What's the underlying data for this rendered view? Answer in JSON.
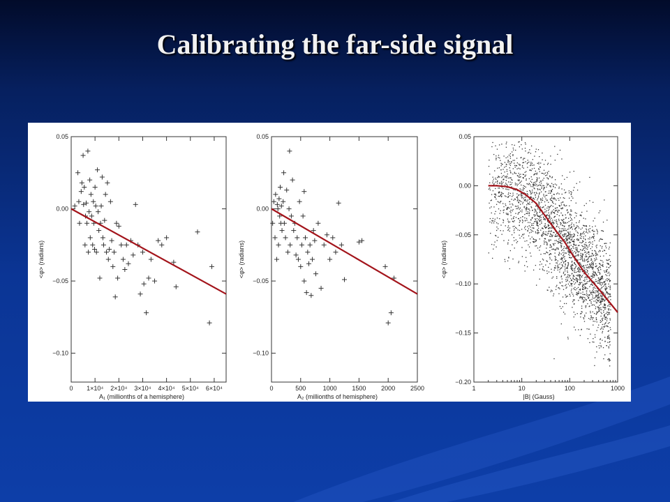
{
  "slide": {
    "title": "Calibrating the far-side signal"
  },
  "chart_data": [
    {
      "type": "scatter",
      "xlabel": "A₁ (millionths of a hemisphere)",
      "ylabel": "<φ> (radians)",
      "xlim": [
        0,
        65000
      ],
      "ylim": [
        -0.12,
        0.05
      ],
      "xticks": [
        0,
        10000,
        20000,
        30000,
        40000,
        50000,
        60000
      ],
      "xtick_labels": [
        "0",
        "1×10⁴",
        "2×10⁴",
        "3×10⁴",
        "4×10⁴",
        "5×10⁴",
        "6×10⁴"
      ],
      "yticks": [
        -0.1,
        -0.05,
        0.0,
        0.05
      ],
      "ytick_labels": [
        "−0.10",
        "−0.05",
        "0.00",
        "0.05"
      ],
      "marker": "plus",
      "points": [
        [
          1500,
          0.002
        ],
        [
          2800,
          0.025
        ],
        [
          3200,
          0.005
        ],
        [
          3500,
          -0.01
        ],
        [
          4200,
          0.012
        ],
        [
          4500,
          0.018
        ],
        [
          5000,
          0.037
        ],
        [
          5200,
          0.003
        ],
        [
          5500,
          0.015
        ],
        [
          5800,
          -0.025
        ],
        [
          6000,
          -0.005
        ],
        [
          6300,
          0.004
        ],
        [
          6600,
          -0.01
        ],
        [
          7000,
          0.04
        ],
        [
          7200,
          -0.03
        ],
        [
          7500,
          -0.002
        ],
        [
          7800,
          0.02
        ],
        [
          8000,
          -0.02
        ],
        [
          8300,
          0.01
        ],
        [
          8600,
          -0.005
        ],
        [
          9000,
          -0.025
        ],
        [
          9300,
          0.005
        ],
        [
          9500,
          -0.01
        ],
        [
          9800,
          -0.028
        ],
        [
          10000,
          0.015
        ],
        [
          10300,
          0.002
        ],
        [
          10600,
          -0.03
        ],
        [
          11000,
          0.027
        ],
        [
          11300,
          -0.002
        ],
        [
          11600,
          -0.015
        ],
        [
          12000,
          -0.048
        ],
        [
          12300,
          -0.01
        ],
        [
          12600,
          0.002
        ],
        [
          13000,
          0.022
        ],
        [
          13300,
          -0.02
        ],
        [
          13600,
          -0.025
        ],
        [
          14000,
          -0.008
        ],
        [
          14400,
          0.01
        ],
        [
          14800,
          -0.03
        ],
        [
          15200,
          0.018
        ],
        [
          15600,
          -0.035
        ],
        [
          16000,
          -0.028
        ],
        [
          16500,
          0.005
        ],
        [
          17000,
          -0.022
        ],
        [
          17500,
          -0.04
        ],
        [
          18000,
          -0.03
        ],
        [
          18500,
          -0.061
        ],
        [
          19000,
          -0.01
        ],
        [
          19500,
          -0.048
        ],
        [
          20000,
          -0.012
        ],
        [
          21000,
          -0.025
        ],
        [
          21800,
          -0.035
        ],
        [
          22500,
          -0.042
        ],
        [
          23200,
          -0.025
        ],
        [
          24000,
          -0.038
        ],
        [
          25000,
          -0.022
        ],
        [
          26000,
          -0.032
        ],
        [
          27000,
          0.003
        ],
        [
          28000,
          -0.025
        ],
        [
          29000,
          -0.059
        ],
        [
          30000,
          -0.03
        ],
        [
          30500,
          -0.052
        ],
        [
          31500,
          -0.072
        ],
        [
          32500,
          -0.048
        ],
        [
          33500,
          -0.035
        ],
        [
          35000,
          -0.05
        ],
        [
          36500,
          -0.022
        ],
        [
          38000,
          -0.025
        ],
        [
          40000,
          -0.02
        ],
        [
          43000,
          -0.037
        ],
        [
          44000,
          -0.054
        ],
        [
          53000,
          -0.016
        ],
        [
          58000,
          -0.079
        ],
        [
          59000,
          -0.04
        ]
      ],
      "fit_line": {
        "x": [
          0,
          65000
        ],
        "y": [
          0.0,
          -0.059
        ]
      }
    },
    {
      "type": "scatter",
      "xlabel": "A₂ (millionths of hemisphere)",
      "ylabel": "<φ> (radians)",
      "xlim": [
        0,
        2500
      ],
      "ylim": [
        -0.12,
        0.05
      ],
      "xticks": [
        0,
        500,
        1000,
        1500,
        2000,
        2500
      ],
      "xtick_labels": [
        "0",
        "500",
        "1000",
        "1500",
        "2000",
        "2500"
      ],
      "yticks": [
        -0.1,
        -0.05,
        0.0,
        0.05
      ],
      "ytick_labels": [
        "−0.10",
        "−0.05",
        "0.00",
        "0.05"
      ],
      "marker": "plus",
      "points": [
        [
          20,
          -0.01
        ],
        [
          40,
          0.005
        ],
        [
          60,
          -0.02
        ],
        [
          70,
          0.01
        ],
        [
          90,
          -0.035
        ],
        [
          100,
          0.003
        ],
        [
          110,
          0.0
        ],
        [
          120,
          -0.025
        ],
        [
          130,
          0.007
        ],
        [
          140,
          -0.005
        ],
        [
          150,
          0.015
        ],
        [
          160,
          -0.01
        ],
        [
          170,
          0.002
        ],
        [
          180,
          -0.015
        ],
        [
          200,
          0.005
        ],
        [
          210,
          0.025
        ],
        [
          220,
          -0.01
        ],
        [
          240,
          -0.02
        ],
        [
          260,
          0.013
        ],
        [
          280,
          -0.03
        ],
        [
          300,
          0.0
        ],
        [
          310,
          0.04
        ],
        [
          320,
          -0.025
        ],
        [
          340,
          -0.005
        ],
        [
          360,
          0.02
        ],
        [
          380,
          -0.015
        ],
        [
          400,
          -0.01
        ],
        [
          420,
          -0.032
        ],
        [
          440,
          -0.02
        ],
        [
          460,
          -0.035
        ],
        [
          480,
          0.005
        ],
        [
          500,
          -0.04
        ],
        [
          520,
          -0.025
        ],
        [
          540,
          -0.005
        ],
        [
          560,
          -0.05
        ],
        [
          580,
          -0.02
        ],
        [
          600,
          -0.058
        ],
        [
          620,
          -0.03
        ],
        [
          640,
          -0.038
        ],
        [
          660,
          -0.025
        ],
        [
          680,
          -0.06
        ],
        [
          700,
          -0.035
        ],
        [
          720,
          -0.015
        ],
        [
          740,
          -0.022
        ],
        [
          760,
          -0.045
        ],
        [
          800,
          -0.01
        ],
        [
          850,
          -0.055
        ],
        [
          900,
          -0.025
        ],
        [
          950,
          -0.018
        ],
        [
          1000,
          -0.035
        ],
        [
          1050,
          -0.02
        ],
        [
          1100,
          -0.03
        ],
        [
          1200,
          -0.025
        ],
        [
          1250,
          -0.049
        ],
        [
          1500,
          -0.023
        ],
        [
          1550,
          -0.022
        ],
        [
          1950,
          -0.04
        ],
        [
          2000,
          -0.079
        ],
        [
          2050,
          -0.072
        ],
        [
          2100,
          -0.048
        ],
        [
          560,
          0.012
        ],
        [
          1150,
          0.004
        ]
      ],
      "fit_line": {
        "x": [
          0,
          2500
        ],
        "y": [
          0.0,
          -0.059
        ]
      }
    },
    {
      "type": "scatter",
      "xlabel": "|B| (Gauss)",
      "ylabel": "<φ> (radians)",
      "xscale": "log",
      "xlim": [
        1,
        1000
      ],
      "ylim": [
        -0.2,
        0.05
      ],
      "xticks": [
        1,
        10,
        100,
        1000
      ],
      "xtick_labels": [
        "1",
        "10",
        "100",
        "1000"
      ],
      "yticks": [
        -0.2,
        -0.15,
        -0.1,
        -0.05,
        0.0,
        0.05
      ],
      "ytick_labels": [
        "−0.20",
        "−0.15",
        "−0.10",
        "−0.05",
        "0.00",
        "0.05"
      ],
      "marker": "dot",
      "point_cloud": {
        "count": 2600,
        "x_range": [
          2,
          700
        ],
        "trend": "y ≈ 0.00 at |B|=2 falling to −0.13 at |B|=1000",
        "scatter_sd": 0.03
      },
      "fit_line": {
        "x": [
          2,
          3,
          5,
          8,
          12,
          20,
          30,
          50,
          80,
          120,
          200,
          400,
          1000
        ],
        "y": [
          0.0,
          0.0,
          -0.001,
          -0.004,
          -0.009,
          -0.018,
          -0.03,
          -0.045,
          -0.058,
          -0.072,
          -0.088,
          -0.105,
          -0.129
        ]
      }
    }
  ]
}
